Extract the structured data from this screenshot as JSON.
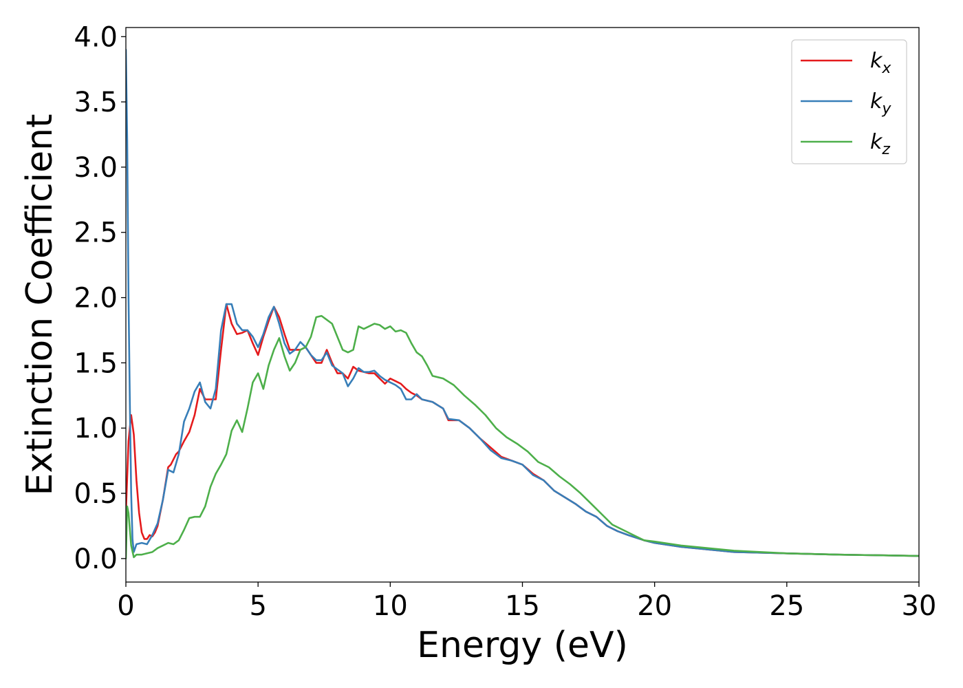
{
  "chart_data": {
    "type": "line",
    "xlabel": "Energy (eV)",
    "ylabel": "Extinction Coefficient",
    "xlim": [
      0,
      30
    ],
    "ylim": [
      -0.18,
      4.07
    ],
    "xticks": [
      0,
      5,
      10,
      15,
      20,
      25,
      30
    ],
    "yticks": [
      0.0,
      0.5,
      1.0,
      1.5,
      2.0,
      2.5,
      3.0,
      3.5,
      4.0
    ],
    "xtick_labels": [
      "0",
      "5",
      "10",
      "15",
      "20",
      "25",
      "30"
    ],
    "ytick_labels": [
      "0.0",
      "0.5",
      "1.0",
      "1.5",
      "2.0",
      "2.5",
      "3.0",
      "3.5",
      "4.0"
    ],
    "grid": false,
    "legend_position": "top-right",
    "series": [
      {
        "name": "k",
        "subscript": "x",
        "color": "#e41a1c",
        "points": [
          [
            0,
            0.35
          ],
          [
            0.1,
            0.9
          ],
          [
            0.2,
            1.1
          ],
          [
            0.3,
            0.95
          ],
          [
            0.4,
            0.6
          ],
          [
            0.5,
            0.35
          ],
          [
            0.6,
            0.2
          ],
          [
            0.7,
            0.15
          ],
          [
            0.8,
            0.15
          ],
          [
            0.9,
            0.18
          ],
          [
            1.0,
            0.17
          ],
          [
            1.1,
            0.2
          ],
          [
            1.2,
            0.25
          ],
          [
            1.4,
            0.45
          ],
          [
            1.6,
            0.7
          ],
          [
            1.7,
            0.72
          ],
          [
            1.9,
            0.8
          ],
          [
            2.0,
            0.82
          ],
          [
            2.2,
            0.9
          ],
          [
            2.4,
            0.97
          ],
          [
            2.6,
            1.1
          ],
          [
            2.8,
            1.3
          ],
          [
            3.0,
            1.22
          ],
          [
            3.2,
            1.22
          ],
          [
            3.4,
            1.22
          ],
          [
            3.6,
            1.6
          ],
          [
            3.8,
            1.95
          ],
          [
            4.0,
            1.8
          ],
          [
            4.2,
            1.72
          ],
          [
            4.4,
            1.73
          ],
          [
            4.6,
            1.75
          ],
          [
            4.8,
            1.65
          ],
          [
            5.0,
            1.56
          ],
          [
            5.2,
            1.7
          ],
          [
            5.4,
            1.82
          ],
          [
            5.6,
            1.93
          ],
          [
            5.8,
            1.85
          ],
          [
            6.0,
            1.72
          ],
          [
            6.2,
            1.6
          ],
          [
            6.4,
            1.6
          ],
          [
            6.6,
            1.6
          ],
          [
            6.8,
            1.62
          ],
          [
            7.0,
            1.56
          ],
          [
            7.2,
            1.5
          ],
          [
            7.4,
            1.5
          ],
          [
            7.6,
            1.6
          ],
          [
            7.8,
            1.5
          ],
          [
            8.0,
            1.42
          ],
          [
            8.2,
            1.42
          ],
          [
            8.4,
            1.38
          ],
          [
            8.6,
            1.47
          ],
          [
            8.8,
            1.44
          ],
          [
            9.0,
            1.43
          ],
          [
            9.2,
            1.42
          ],
          [
            9.4,
            1.42
          ],
          [
            9.6,
            1.38
          ],
          [
            9.8,
            1.34
          ],
          [
            10.0,
            1.38
          ],
          [
            10.2,
            1.36
          ],
          [
            10.4,
            1.34
          ],
          [
            10.6,
            1.3
          ],
          [
            10.8,
            1.27
          ],
          [
            11.0,
            1.25
          ],
          [
            11.2,
            1.22
          ],
          [
            11.6,
            1.2
          ],
          [
            12.0,
            1.15
          ],
          [
            12.2,
            1.06
          ],
          [
            12.6,
            1.06
          ],
          [
            13.0,
            1.0
          ],
          [
            13.4,
            0.92
          ],
          [
            13.8,
            0.85
          ],
          [
            14.2,
            0.78
          ],
          [
            14.6,
            0.75
          ],
          [
            15.0,
            0.72
          ],
          [
            15.4,
            0.65
          ],
          [
            15.8,
            0.6
          ],
          [
            16.2,
            0.52
          ],
          [
            16.6,
            0.47
          ],
          [
            17.0,
            0.42
          ],
          [
            17.4,
            0.36
          ],
          [
            17.8,
            0.32
          ],
          [
            18.2,
            0.25
          ],
          [
            18.6,
            0.21
          ],
          [
            19.0,
            0.18
          ],
          [
            19.6,
            0.14
          ],
          [
            20.0,
            0.12
          ],
          [
            21.0,
            0.09
          ],
          [
            22.0,
            0.07
          ],
          [
            23.0,
            0.05
          ],
          [
            25.0,
            0.04
          ],
          [
            27.0,
            0.03
          ],
          [
            30.0,
            0.02
          ]
        ]
      },
      {
        "name": "k",
        "subscript": "y",
        "color": "#377eb8",
        "points": [
          [
            0,
            3.9
          ],
          [
            0.05,
            3.2
          ],
          [
            0.1,
            2.0
          ],
          [
            0.15,
            1.2
          ],
          [
            0.2,
            0.5
          ],
          [
            0.25,
            0.15
          ],
          [
            0.3,
            0.05
          ],
          [
            0.4,
            0.11
          ],
          [
            0.6,
            0.12
          ],
          [
            0.8,
            0.11
          ],
          [
            1.0,
            0.18
          ],
          [
            1.2,
            0.27
          ],
          [
            1.4,
            0.45
          ],
          [
            1.6,
            0.68
          ],
          [
            1.8,
            0.66
          ],
          [
            2.0,
            0.8
          ],
          [
            2.2,
            1.05
          ],
          [
            2.4,
            1.15
          ],
          [
            2.6,
            1.28
          ],
          [
            2.8,
            1.35
          ],
          [
            3.0,
            1.2
          ],
          [
            3.2,
            1.15
          ],
          [
            3.4,
            1.3
          ],
          [
            3.6,
            1.75
          ],
          [
            3.8,
            1.95
          ],
          [
            4.0,
            1.95
          ],
          [
            4.2,
            1.8
          ],
          [
            4.4,
            1.75
          ],
          [
            4.6,
            1.75
          ],
          [
            4.8,
            1.7
          ],
          [
            5.0,
            1.62
          ],
          [
            5.2,
            1.72
          ],
          [
            5.4,
            1.85
          ],
          [
            5.6,
            1.93
          ],
          [
            5.8,
            1.8
          ],
          [
            6.0,
            1.65
          ],
          [
            6.2,
            1.57
          ],
          [
            6.4,
            1.6
          ],
          [
            6.6,
            1.66
          ],
          [
            6.8,
            1.62
          ],
          [
            7.0,
            1.56
          ],
          [
            7.2,
            1.52
          ],
          [
            7.4,
            1.52
          ],
          [
            7.6,
            1.58
          ],
          [
            7.8,
            1.48
          ],
          [
            8.0,
            1.45
          ],
          [
            8.2,
            1.42
          ],
          [
            8.4,
            1.32
          ],
          [
            8.6,
            1.38
          ],
          [
            8.8,
            1.46
          ],
          [
            9.0,
            1.43
          ],
          [
            9.2,
            1.43
          ],
          [
            9.4,
            1.44
          ],
          [
            9.6,
            1.4
          ],
          [
            9.8,
            1.37
          ],
          [
            10.0,
            1.35
          ],
          [
            10.2,
            1.33
          ],
          [
            10.4,
            1.3
          ],
          [
            10.6,
            1.22
          ],
          [
            10.8,
            1.22
          ],
          [
            11.0,
            1.26
          ],
          [
            11.2,
            1.22
          ],
          [
            11.6,
            1.2
          ],
          [
            12.0,
            1.15
          ],
          [
            12.2,
            1.07
          ],
          [
            12.6,
            1.06
          ],
          [
            13.0,
            1.0
          ],
          [
            13.4,
            0.92
          ],
          [
            13.8,
            0.83
          ],
          [
            14.2,
            0.77
          ],
          [
            14.6,
            0.75
          ],
          [
            15.0,
            0.72
          ],
          [
            15.4,
            0.64
          ],
          [
            15.8,
            0.6
          ],
          [
            16.2,
            0.52
          ],
          [
            16.6,
            0.47
          ],
          [
            17.0,
            0.42
          ],
          [
            17.4,
            0.36
          ],
          [
            17.8,
            0.32
          ],
          [
            18.2,
            0.25
          ],
          [
            18.6,
            0.21
          ],
          [
            19.0,
            0.18
          ],
          [
            19.6,
            0.14
          ],
          [
            20.0,
            0.12
          ],
          [
            21.0,
            0.09
          ],
          [
            22.0,
            0.07
          ],
          [
            23.0,
            0.05
          ],
          [
            25.0,
            0.04
          ],
          [
            27.0,
            0.03
          ],
          [
            30.0,
            0.02
          ]
        ]
      },
      {
        "name": "k",
        "subscript": "z",
        "color": "#4daf4a",
        "points": [
          [
            0,
            0.0
          ],
          [
            0.05,
            0.4
          ],
          [
            0.1,
            0.35
          ],
          [
            0.2,
            0.1
          ],
          [
            0.3,
            0.01
          ],
          [
            0.4,
            0.03
          ],
          [
            0.6,
            0.03
          ],
          [
            0.8,
            0.04
          ],
          [
            1.0,
            0.05
          ],
          [
            1.2,
            0.08
          ],
          [
            1.4,
            0.1
          ],
          [
            1.6,
            0.12
          ],
          [
            1.8,
            0.11
          ],
          [
            2.0,
            0.14
          ],
          [
            2.2,
            0.22
          ],
          [
            2.4,
            0.31
          ],
          [
            2.6,
            0.32
          ],
          [
            2.8,
            0.32
          ],
          [
            3.0,
            0.4
          ],
          [
            3.2,
            0.55
          ],
          [
            3.4,
            0.65
          ],
          [
            3.6,
            0.72
          ],
          [
            3.8,
            0.8
          ],
          [
            4.0,
            0.98
          ],
          [
            4.2,
            1.06
          ],
          [
            4.4,
            0.97
          ],
          [
            4.6,
            1.15
          ],
          [
            4.8,
            1.35
          ],
          [
            5.0,
            1.42
          ],
          [
            5.2,
            1.3
          ],
          [
            5.4,
            1.48
          ],
          [
            5.6,
            1.6
          ],
          [
            5.8,
            1.69
          ],
          [
            6.0,
            1.55
          ],
          [
            6.2,
            1.44
          ],
          [
            6.4,
            1.5
          ],
          [
            6.6,
            1.6
          ],
          [
            6.8,
            1.62
          ],
          [
            7.0,
            1.7
          ],
          [
            7.2,
            1.85
          ],
          [
            7.4,
            1.86
          ],
          [
            7.6,
            1.83
          ],
          [
            7.8,
            1.8
          ],
          [
            8.0,
            1.7
          ],
          [
            8.2,
            1.6
          ],
          [
            8.4,
            1.58
          ],
          [
            8.6,
            1.6
          ],
          [
            8.8,
            1.78
          ],
          [
            9.0,
            1.76
          ],
          [
            9.2,
            1.78
          ],
          [
            9.4,
            1.8
          ],
          [
            9.6,
            1.79
          ],
          [
            9.8,
            1.76
          ],
          [
            10.0,
            1.78
          ],
          [
            10.2,
            1.74
          ],
          [
            10.4,
            1.75
          ],
          [
            10.6,
            1.73
          ],
          [
            10.8,
            1.65
          ],
          [
            11.0,
            1.58
          ],
          [
            11.2,
            1.55
          ],
          [
            11.4,
            1.48
          ],
          [
            11.6,
            1.4
          ],
          [
            12.0,
            1.38
          ],
          [
            12.4,
            1.33
          ],
          [
            12.8,
            1.25
          ],
          [
            13.2,
            1.18
          ],
          [
            13.6,
            1.1
          ],
          [
            14.0,
            1.0
          ],
          [
            14.4,
            0.93
          ],
          [
            14.8,
            0.88
          ],
          [
            15.2,
            0.82
          ],
          [
            15.6,
            0.74
          ],
          [
            16.0,
            0.7
          ],
          [
            16.4,
            0.63
          ],
          [
            16.8,
            0.57
          ],
          [
            17.2,
            0.5
          ],
          [
            17.6,
            0.42
          ],
          [
            18.0,
            0.34
          ],
          [
            18.4,
            0.26
          ],
          [
            18.8,
            0.22
          ],
          [
            19.2,
            0.18
          ],
          [
            19.6,
            0.14
          ],
          [
            20.0,
            0.13
          ],
          [
            21.0,
            0.1
          ],
          [
            22.0,
            0.08
          ],
          [
            23.0,
            0.06
          ],
          [
            25.0,
            0.04
          ],
          [
            27.0,
            0.03
          ],
          [
            30.0,
            0.02
          ]
        ]
      }
    ]
  }
}
